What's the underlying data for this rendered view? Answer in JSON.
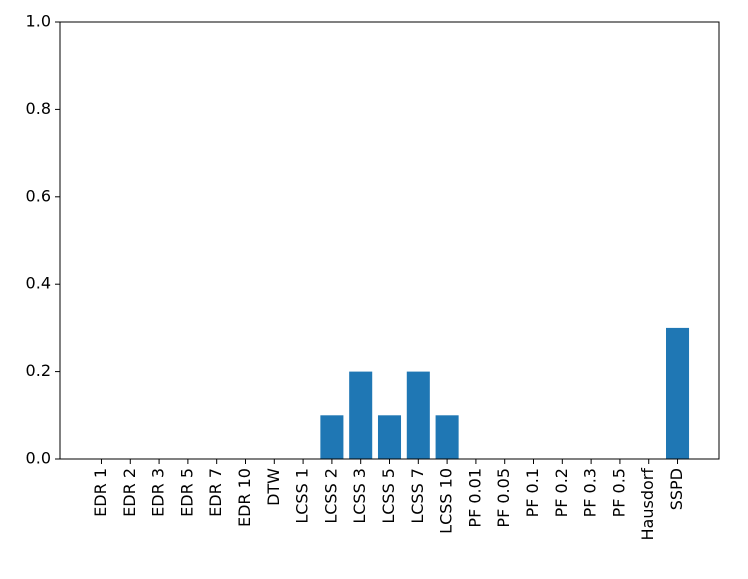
{
  "chart_data": {
    "type": "bar",
    "categories": [
      "EDR 1",
      "EDR 2",
      "EDR 3",
      "EDR 5",
      "EDR 7",
      "EDR 10",
      "DTW",
      "LCSS 1",
      "LCSS 2",
      "LCSS 3",
      "LCSS 5",
      "LCSS 7",
      "LCSS 10",
      "PF 0.01",
      "PF 0.05",
      "PF 0.1",
      "PF 0.2",
      "PF 0.3",
      "PF 0.5",
      "Hausdorf",
      "SSPD"
    ],
    "values": [
      0,
      0,
      0,
      0,
      0,
      0,
      0,
      0,
      0.1,
      0.2,
      0.1,
      0.2,
      0.1,
      0,
      0,
      0,
      0,
      0,
      0,
      0,
      0.3
    ],
    "color": "#1f77b4",
    "ylim": [
      0,
      1
    ],
    "yticks": [
      {
        "value": 0,
        "label": "0.0"
      },
      0.2,
      0.4,
      0.6,
      0.8,
      {
        "value": 1,
        "label": "1.0"
      }
    ],
    "grid": false
  }
}
